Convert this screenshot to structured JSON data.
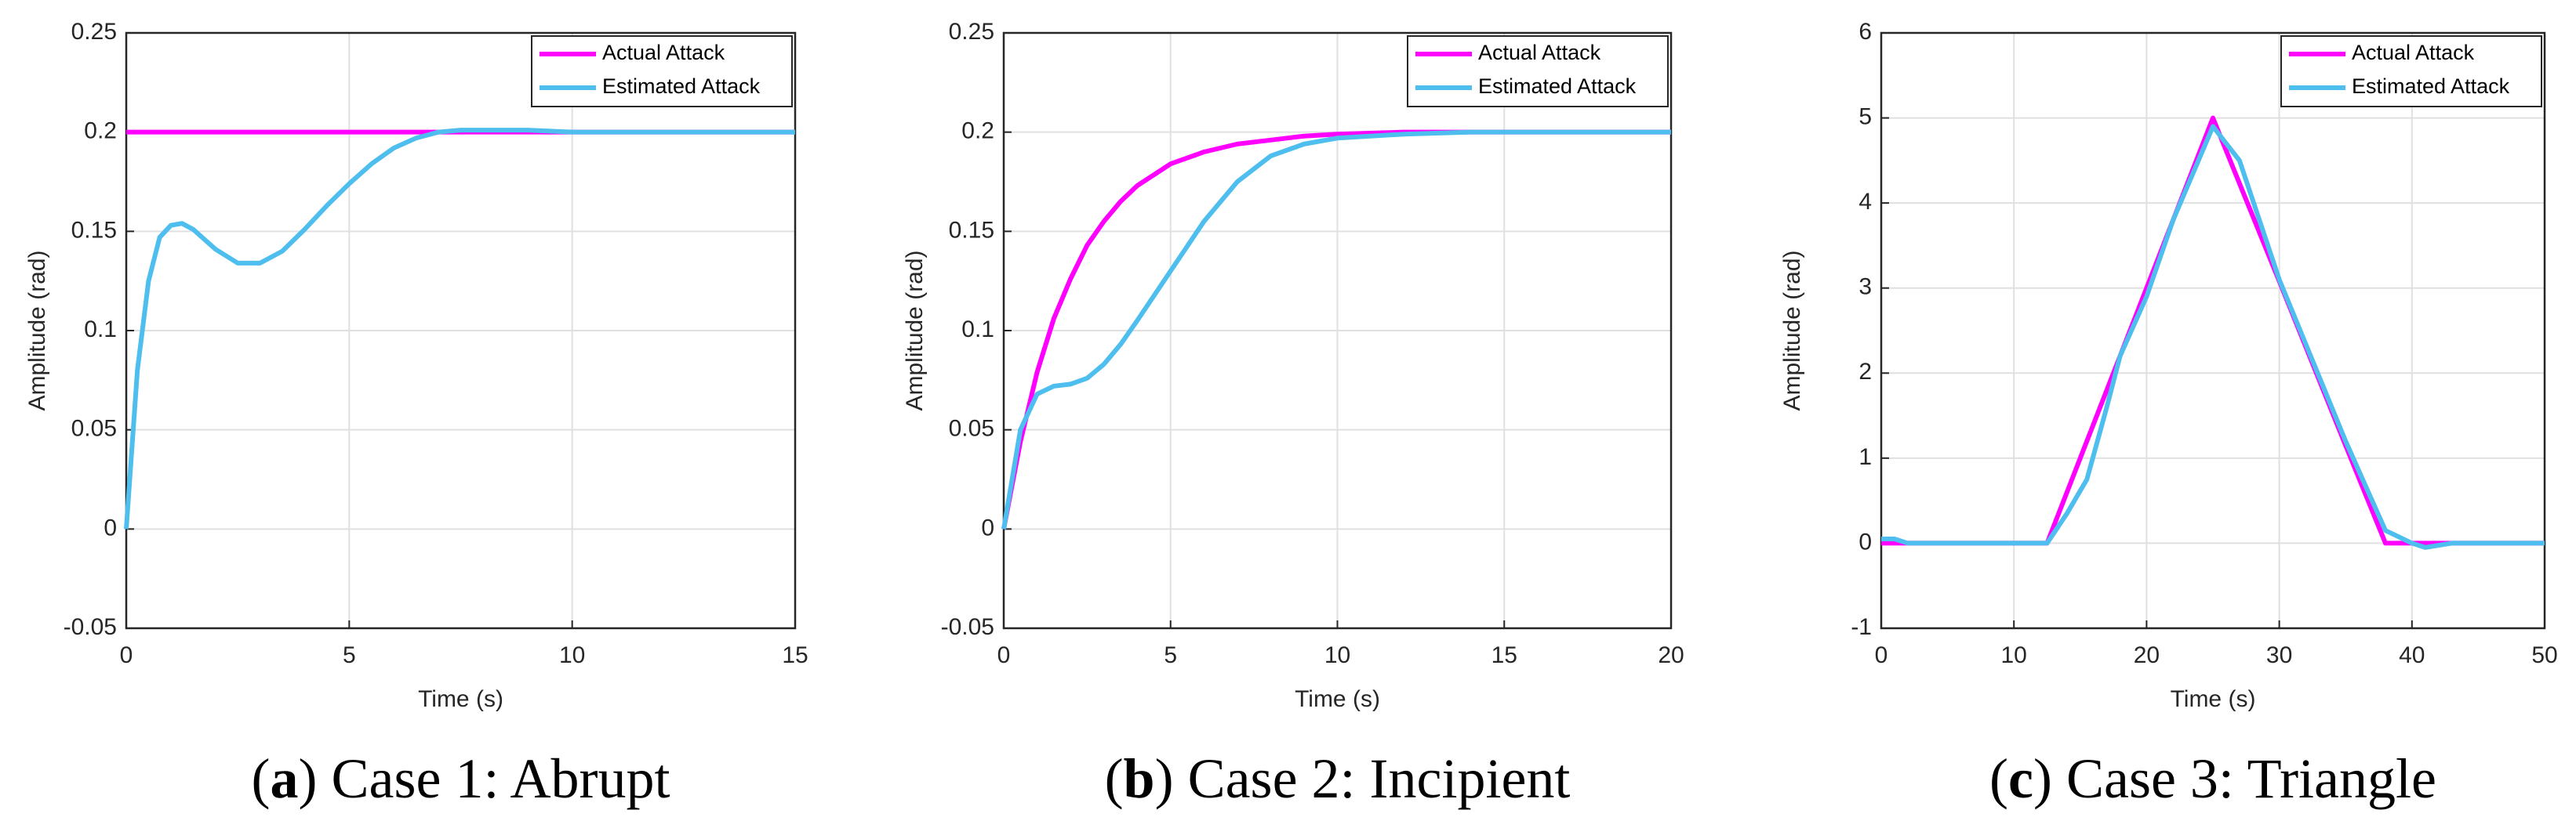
{
  "chart_data": [
    {
      "type": "line",
      "caption": [
        "(",
        "a",
        ") Case 1: Abrupt"
      ],
      "x_label": "Time (s)",
      "y_label": "Amplitude (rad)",
      "x": [
        0,
        0.25,
        0.5,
        0.75,
        1,
        1.25,
        1.5,
        2,
        2.5,
        3,
        3.5,
        4,
        4.5,
        5,
        5.5,
        6,
        6.5,
        7,
        7.5,
        8,
        9,
        10,
        12,
        15
      ],
      "series": [
        {
          "name": "Actual Attack",
          "color": "#ff00ff",
          "values": [
            0.2,
            0.2,
            0.2,
            0.2,
            0.2,
            0.2,
            0.2,
            0.2,
            0.2,
            0.2,
            0.2,
            0.2,
            0.2,
            0.2,
            0.2,
            0.2,
            0.2,
            0.2,
            0.2,
            0.2,
            0.2,
            0.2,
            0.2,
            0.2
          ]
        },
        {
          "name": "Estimated Attack",
          "color": "#4dbeee",
          "values": [
            0,
            0.08,
            0.125,
            0.147,
            0.153,
            0.154,
            0.151,
            0.141,
            0.134,
            0.134,
            0.14,
            0.151,
            0.163,
            0.174,
            0.184,
            0.192,
            0.197,
            0.2,
            0.201,
            0.201,
            0.201,
            0.2,
            0.2,
            0.2
          ]
        }
      ],
      "xlim": [
        0,
        15
      ],
      "xticks": [
        0,
        5,
        10,
        15
      ],
      "ylim": [
        -0.05,
        0.25
      ],
      "yticks": [
        -0.05,
        0,
        0.05,
        0.1,
        0.15,
        0.2,
        0.25
      ],
      "grid": true,
      "legend": "upper right"
    },
    {
      "type": "line",
      "caption": [
        "(",
        "b",
        ") Case 2: Incipient"
      ],
      "x_label": "Time (s)",
      "y_label": "Amplitude (rad)",
      "x": [
        0,
        0.5,
        1,
        1.5,
        2,
        2.5,
        3,
        3.5,
        4,
        5,
        6,
        7,
        8,
        9,
        10,
        12,
        14,
        16,
        18,
        20
      ],
      "series": [
        {
          "name": "Actual Attack",
          "color": "#ff00ff",
          "values": [
            0,
            0.044,
            0.079,
            0.106,
            0.126,
            0.143,
            0.155,
            0.165,
            0.173,
            0.184,
            0.19,
            0.194,
            0.196,
            0.198,
            0.199,
            0.2,
            0.2,
            0.2,
            0.2,
            0.2
          ]
        },
        {
          "name": "Estimated Attack",
          "color": "#4dbeee",
          "values": [
            0,
            0.05,
            0.068,
            0.072,
            0.073,
            0.076,
            0.083,
            0.093,
            0.105,
            0.13,
            0.155,
            0.175,
            0.188,
            0.194,
            0.197,
            0.199,
            0.2,
            0.2,
            0.2,
            0.2
          ]
        }
      ],
      "xlim": [
        0,
        20
      ],
      "xticks": [
        0,
        5,
        10,
        15,
        20
      ],
      "ylim": [
        -0.05,
        0.25
      ],
      "yticks": [
        -0.05,
        0,
        0.05,
        0.1,
        0.15,
        0.2,
        0.25
      ],
      "grid": true,
      "legend": "upper right"
    },
    {
      "type": "line",
      "caption": [
        "(",
        "c",
        ") Case 3: Triangle"
      ],
      "x_label": "Time (s)",
      "y_label": "Amplitude (rad)",
      "x": [
        0,
        1,
        2,
        5,
        10,
        12.5,
        14,
        15.5,
        17,
        18,
        20,
        22,
        25,
        27,
        30,
        35,
        38,
        40,
        41,
        43,
        45,
        50
      ],
      "series": [
        {
          "name": "Actual Attack",
          "color": "#ff00ff",
          "values": [
            0,
            0,
            0,
            0,
            0,
            0,
            0.6,
            1.2,
            1.8,
            2.2,
            3,
            3.8,
            5,
            4.23,
            3.08,
            1.15,
            0,
            0,
            0,
            0,
            0,
            0
          ]
        },
        {
          "name": "Estimated Attack",
          "color": "#4dbeee",
          "values": [
            0.05,
            0.05,
            0,
            0,
            0,
            0,
            0.35,
            0.75,
            1.6,
            2.2,
            2.9,
            3.8,
            4.9,
            4.5,
            3.1,
            1.2,
            0.15,
            0,
            -0.05,
            0,
            0,
            0
          ]
        }
      ],
      "xlim": [
        0,
        50
      ],
      "xticks": [
        0,
        10,
        20,
        30,
        40,
        50
      ],
      "ylim": [
        -1,
        6
      ],
      "yticks": [
        -1,
        0,
        1,
        2,
        3,
        4,
        5,
        6
      ],
      "grid": true,
      "legend": "upper right"
    }
  ]
}
